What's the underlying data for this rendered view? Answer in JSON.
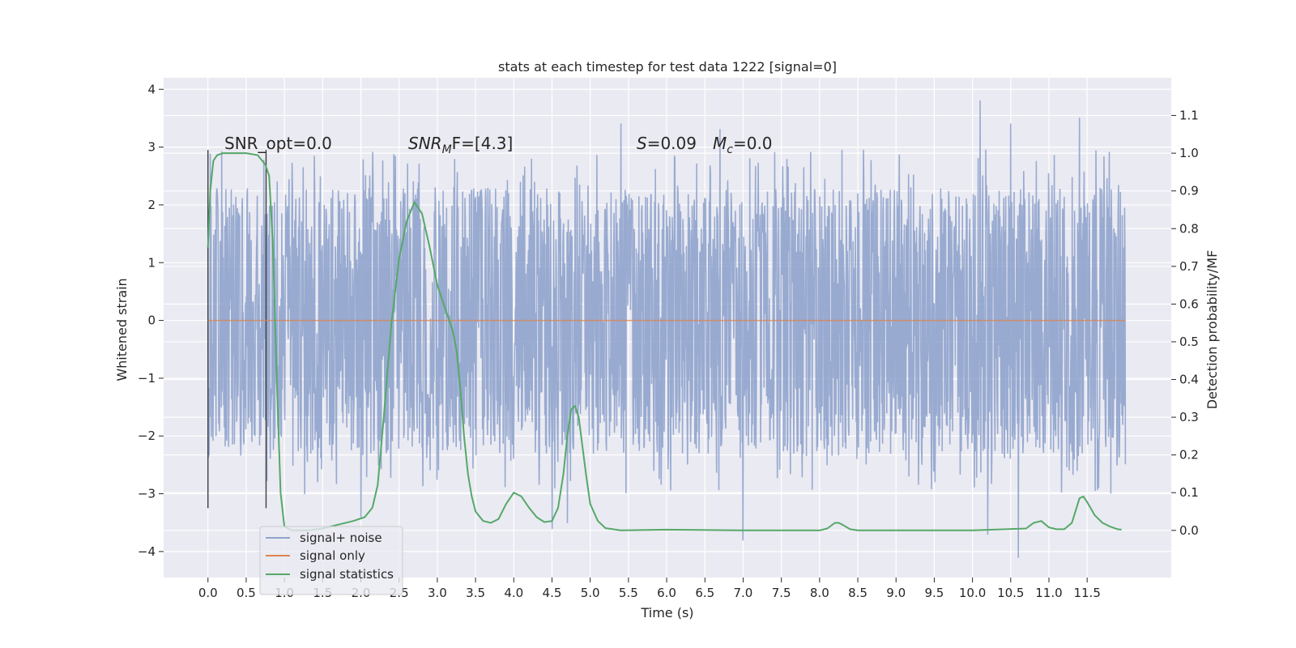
{
  "chart_data": {
    "type": "line",
    "title": "stats at each timestep for test data 1222 [signal=0]",
    "xlabel": "Time (s)",
    "ylabel": "Whitened strain",
    "y2label": "Detection probability/MF",
    "xlim": [
      -0.58,
      12.6
    ],
    "ylim": [
      -4.45,
      4.2
    ],
    "y2lim": [
      -0.125,
      1.2
    ],
    "x_ticks": [
      "0.0",
      "0.5",
      "1.0",
      "1.5",
      "2.0",
      "2.5",
      "3.0",
      "3.5",
      "4.0",
      "4.5",
      "5.0",
      "5.5",
      "6.0",
      "6.5",
      "7.0",
      "7.5",
      "8.0",
      "8.5",
      "9.0",
      "9.5",
      "10.0",
      "10.5",
      "11.0",
      "11.5"
    ],
    "y_ticks": [
      "4",
      "3",
      "2",
      "1",
      "0",
      "−1",
      "−2",
      "−3",
      "−4"
    ],
    "y2_ticks": [
      "1.1",
      "1.0",
      "0.9",
      "0.8",
      "0.7",
      "0.6",
      "0.5",
      "0.4",
      "0.3",
      "0.2",
      "0.1",
      "0.0"
    ],
    "grid": true,
    "annotations": {
      "snr_opt": "SNR_opt=0.0",
      "snr_mf_var": "SNR",
      "snr_mf_sub": "M",
      "snr_mf_rest": "F=[4.3]",
      "s_var": "S",
      "s_rest": "=0.09",
      "mc_var": "M",
      "mc_sub": "c",
      "mc_rest": "=0.0"
    },
    "legend": {
      "placement": "lower-left"
    },
    "series": [
      {
        "name": "signal+ noise",
        "color": "#8fa3cc",
        "duration_s": 12.0,
        "envelope_core": 1.1,
        "envelope_typical_peak": 2.3,
        "extremes": [
          {
            "x": 10.1,
            "y": 3.8
          },
          {
            "x": 11.4,
            "y": 3.5
          },
          {
            "x": 10.5,
            "y": 3.4
          },
          {
            "x": 5.4,
            "y": 3.4
          },
          {
            "x": 6.7,
            "y": 3.3
          },
          {
            "x": 10.6,
            "y": -4.1
          },
          {
            "x": 7.0,
            "y": -3.8
          },
          {
            "x": 10.2,
            "y": -3.7
          },
          {
            "x": 4.5,
            "y": -3.6
          },
          {
            "x": 4.7,
            "y": -3.5
          },
          {
            "x": 2.0,
            "y": -3.4
          }
        ]
      },
      {
        "name": "signal only",
        "color": "#dd8452",
        "x": [
          0.0,
          12.0
        ],
        "y": [
          0.0,
          0.0
        ]
      },
      {
        "name": "signal statistics",
        "color": "#55a868",
        "axis": "right",
        "x": [
          0.0,
          0.03,
          0.07,
          0.12,
          0.2,
          0.35,
          0.5,
          0.65,
          0.75,
          0.8,
          0.85,
          0.9,
          0.95,
          1.0,
          1.1,
          1.3,
          1.5,
          1.7,
          1.9,
          2.05,
          2.15,
          2.22,
          2.3,
          2.4,
          2.5,
          2.6,
          2.7,
          2.8,
          2.9,
          3.0,
          3.1,
          3.15,
          3.2,
          3.25,
          3.3,
          3.35,
          3.4,
          3.45,
          3.5,
          3.6,
          3.7,
          3.8,
          3.9,
          4.0,
          4.1,
          4.2,
          4.3,
          4.4,
          4.5,
          4.58,
          4.65,
          4.7,
          4.75,
          4.8,
          4.85,
          4.9,
          4.95,
          5.0,
          5.1,
          5.2,
          5.4,
          6.0,
          7.0,
          8.0,
          8.1,
          8.2,
          8.25,
          8.3,
          8.4,
          8.5,
          9.0,
          10.0,
          10.7,
          10.8,
          10.9,
          11.0,
          11.1,
          11.2,
          11.3,
          11.4,
          11.45,
          11.5,
          11.6,
          11.7,
          11.8,
          11.9,
          11.95
        ],
        "y": [
          0.75,
          0.9,
          0.98,
          0.995,
          1.0,
          1.0,
          1.0,
          0.995,
          0.97,
          0.94,
          0.75,
          0.4,
          0.1,
          0.01,
          0.0,
          0.0,
          0.005,
          0.015,
          0.025,
          0.035,
          0.06,
          0.12,
          0.3,
          0.55,
          0.72,
          0.82,
          0.87,
          0.84,
          0.75,
          0.65,
          0.59,
          0.56,
          0.53,
          0.48,
          0.38,
          0.25,
          0.15,
          0.09,
          0.05,
          0.025,
          0.02,
          0.03,
          0.07,
          0.1,
          0.09,
          0.06,
          0.035,
          0.022,
          0.025,
          0.06,
          0.15,
          0.25,
          0.32,
          0.33,
          0.3,
          0.22,
          0.14,
          0.07,
          0.025,
          0.006,
          0.0,
          0.002,
          0.0,
          0.0,
          0.005,
          0.02,
          0.02,
          0.015,
          0.003,
          0.0,
          0.0,
          0.0,
          0.005,
          0.02,
          0.025,
          0.008,
          0.003,
          0.003,
          0.02,
          0.085,
          0.09,
          0.075,
          0.04,
          0.02,
          0.01,
          0.003,
          0.002
        ]
      }
    ]
  }
}
